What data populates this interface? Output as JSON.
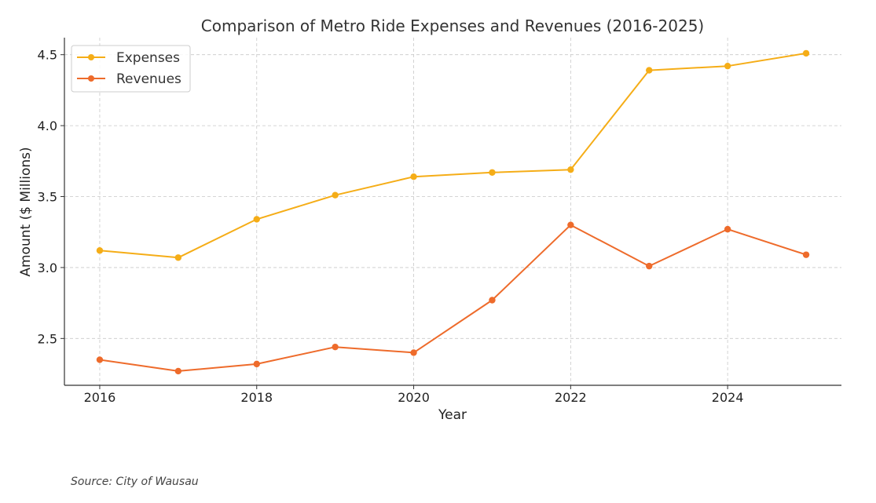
{
  "chart_data": {
    "type": "line",
    "title": "Comparison of Metro Ride Expenses and Revenues (2016-2025)",
    "xlabel": "Year",
    "ylabel": "Amount ($ Millions)",
    "x": [
      2016,
      2017,
      2018,
      2019,
      2020,
      2021,
      2022,
      2023,
      2024,
      2025
    ],
    "xlim": [
      2015.55,
      2025.45
    ],
    "ylim": [
      2.17,
      4.62
    ],
    "xticks": [
      "2016",
      "2018",
      "2020",
      "2022",
      "2024"
    ],
    "xtick_values": [
      2016,
      2018,
      2020,
      2022,
      2024
    ],
    "yticks": [
      "2.5",
      "3.0",
      "3.5",
      "4.0",
      "4.5"
    ],
    "ytick_values": [
      2.5,
      3.0,
      3.5,
      4.0,
      4.5
    ],
    "grid": true,
    "legend_position": "top-left",
    "series": [
      {
        "name": "Expenses",
        "color": "#F5AD17",
        "values": [
          3.12,
          3.07,
          3.34,
          3.51,
          3.64,
          3.67,
          3.69,
          4.39,
          4.42,
          4.51
        ]
      },
      {
        "name": "Revenues",
        "color": "#EE6B2B",
        "values": [
          2.35,
          2.27,
          2.32,
          2.44,
          2.4,
          2.77,
          3.3,
          3.01,
          3.27,
          3.09
        ]
      }
    ]
  },
  "source": "Source: City of Wausau"
}
